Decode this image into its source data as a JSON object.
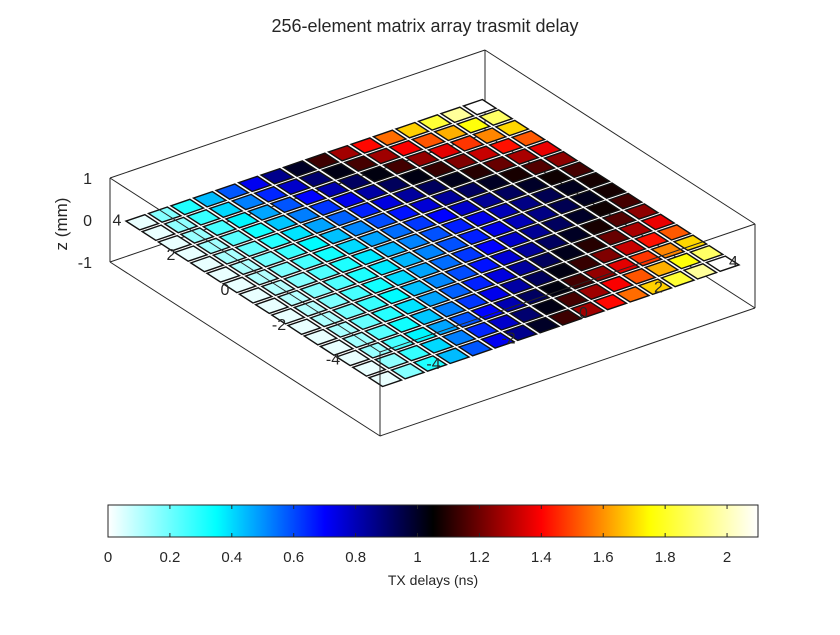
{
  "chart_data": {
    "type": "heatmap",
    "title": "256-element matrix array trasmit delay",
    "xlabel": "",
    "ylabel": "",
    "zlabel": "z (mm)",
    "grid_size": [
      16,
      16
    ],
    "element_pitch_mm": 0.6,
    "x_range": [
      -4.5,
      4.5
    ],
    "y_range": [
      -4.5,
      4.5
    ],
    "z_range": [
      -1,
      1
    ],
    "x_ticks": [
      "-4",
      "-2",
      "0",
      "2",
      "4"
    ],
    "y_ticks": [
      "-4",
      "-2",
      "0",
      "2",
      "4"
    ],
    "z_ticks": [
      "-1",
      "0",
      "1"
    ],
    "delay_min_ns": 0.03,
    "delay_max_ns": 2.1,
    "colorbar": {
      "label": "TX delays (ns)",
      "range": [
        0,
        2.1
      ],
      "ticks": [
        "0",
        "0.2",
        "0.4",
        "0.6",
        "0.8",
        "1",
        "1.2",
        "1.4",
        "1.6",
        "1.8",
        "2"
      ],
      "colormap": "cold-to-hot",
      "stops": [
        "#ffffff",
        "#00ffff",
        "#0000ff",
        "#000000",
        "#ff0000",
        "#ffff00",
        "#ffffff"
      ]
    },
    "grid": false,
    "box": true
  }
}
